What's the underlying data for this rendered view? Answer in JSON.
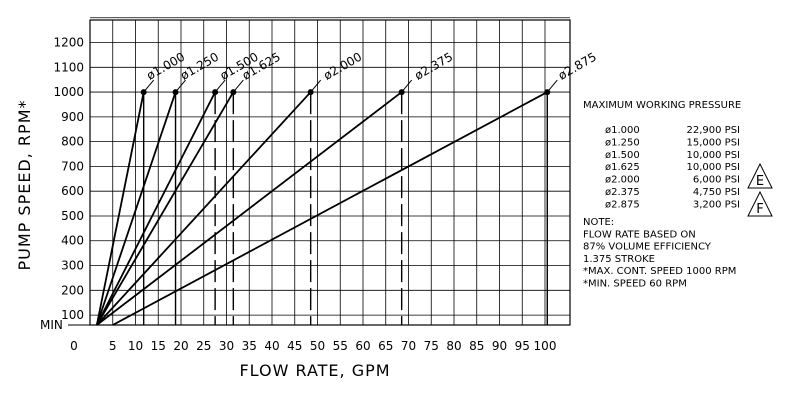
{
  "chart_data": {
    "type": "line",
    "title": "",
    "xlabel": "FLOW RATE, GPM",
    "ylabel": "PUMP SPEED, RPM*",
    "xlim": [
      0,
      105
    ],
    "ylim": [
      60,
      1300
    ],
    "x_ticks": [
      "0",
      "5",
      "10",
      "15",
      "20",
      "25",
      "30",
      "35",
      "40",
      "45",
      "50",
      "55",
      "60",
      "65",
      "70",
      "75",
      "80",
      "85",
      "90",
      "95",
      "100"
    ],
    "y_ticks": [
      "100",
      "200",
      "300",
      "400",
      "500",
      "600",
      "700",
      "800",
      "900",
      "1000",
      "1100",
      "1200"
    ],
    "y_min_label": "MIN",
    "grid": true,
    "series": [
      {
        "name": "ø1.000",
        "x": [
          1.5,
          11.8
        ],
        "y": [
          60,
          1000
        ]
      },
      {
        "name": "ø1.250",
        "x": [
          1.5,
          18.8
        ],
        "y": [
          60,
          1000
        ]
      },
      {
        "name": "ø1.500",
        "x": [
          1.5,
          27.5
        ],
        "y": [
          60,
          1000
        ]
      },
      {
        "name": "ø1.625",
        "x": [
          1.5,
          31.5
        ],
        "y": [
          60,
          1000
        ]
      },
      {
        "name": "ø2.000",
        "x": [
          1.5,
          48.5
        ],
        "y": [
          60,
          1000
        ]
      },
      {
        "name": "ø2.375",
        "x": [
          1.5,
          68.5
        ],
        "y": [
          60,
          1000
        ]
      },
      {
        "name": "ø2.875",
        "x": [
          5.0,
          100.5
        ],
        "y": [
          60,
          1000
        ]
      }
    ],
    "annotations": {
      "pressure_title": "MAXIMUM WORKING PRESSURE",
      "pressure_table": [
        {
          "bore": "ø1.000",
          "pressure": "22,900 PSI"
        },
        {
          "bore": "ø1.250",
          "pressure": "15,000 PSI"
        },
        {
          "bore": "ø1.500",
          "pressure": "10,000 PSI"
        },
        {
          "bore": "ø1.625",
          "pressure": "10,000 PSI"
        },
        {
          "bore": "ø2.000",
          "pressure": "6,000 PSI"
        },
        {
          "bore": "ø2.375",
          "pressure": "4,750 PSI"
        },
        {
          "bore": "ø2.875",
          "pressure": "3,200 PSI"
        }
      ],
      "flags": [
        "E",
        "F"
      ],
      "notes": [
        "NOTE:",
        "FLOW RATE BASED ON",
        "87% VOLUME EFFICIENCY",
        "1.375 STROKE",
        "*MAX. CONT. SPEED 1000 RPM",
        "*MIN. SPEED 60 RPM"
      ]
    }
  }
}
